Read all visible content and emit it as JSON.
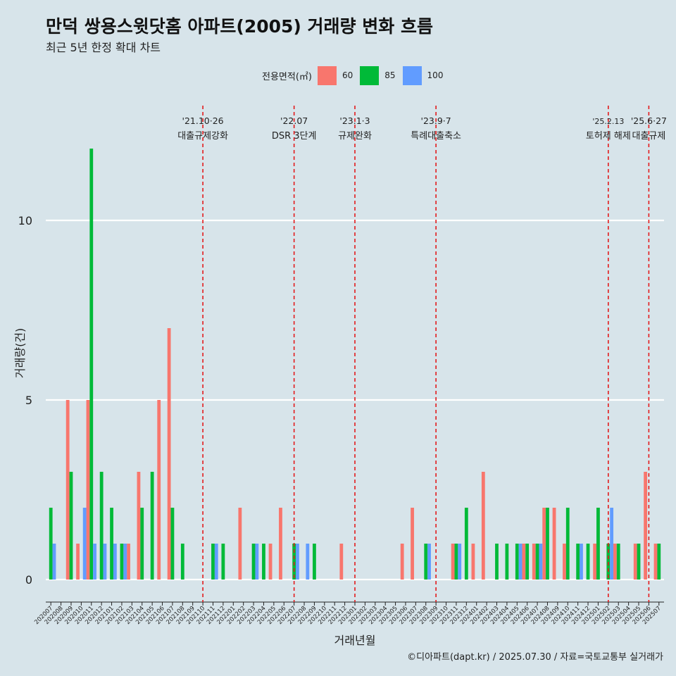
{
  "title": "만덕 쌍용스윗닷홈 아파트(2005) 거래량 변화 흐름",
  "subtitle": "최근 5년 한정 확대 차트",
  "legend": {
    "title": "전용면적(㎡)",
    "items": [
      {
        "label": "60",
        "color": "#f8766d"
      },
      {
        "label": "85",
        "color": "#00ba38"
      },
      {
        "label": "100",
        "color": "#619cff"
      }
    ]
  },
  "caption": "©디아파트(dapt.kr) / 2025.07.30 / 자료=국토교통부 실거래가",
  "chart_data": {
    "type": "bar",
    "xlabel": "거래년월",
    "ylabel": "거래량(건)",
    "ylim": [
      -0.6,
      13.2
    ],
    "yticks": [
      0,
      5,
      10
    ],
    "grid": "horizontal",
    "legend_position": "top",
    "categories": [
      "202007",
      "202008",
      "202009",
      "202010",
      "202011",
      "202012",
      "202101",
      "202102",
      "202103",
      "202104",
      "202105",
      "202106",
      "202107",
      "202108",
      "202109",
      "202110",
      "202111",
      "202112",
      "202201",
      "202202",
      "202203",
      "202204",
      "202205",
      "202206",
      "202207",
      "202208",
      "202209",
      "202210",
      "202211",
      "202212",
      "202301",
      "202302",
      "202303",
      "202304",
      "202305",
      "202306",
      "202307",
      "202308",
      "202309",
      "202310",
      "202311",
      "202312",
      "202401",
      "202402",
      "202403",
      "202404",
      "202405",
      "202406",
      "202407",
      "202408",
      "202409",
      "202410",
      "202411",
      "202412",
      "202501",
      "202502",
      "202503",
      "202504",
      "202505",
      "202506",
      "202507"
    ],
    "series": [
      {
        "name": "60",
        "color": "#f8766d",
        "values": [
          0,
          0,
          5,
          1,
          5,
          0,
          0,
          0,
          1,
          3,
          0,
          5,
          7,
          0,
          0,
          0,
          0,
          0,
          0,
          2,
          0,
          0,
          1,
          2,
          0,
          0,
          0,
          0,
          0,
          1,
          0,
          0,
          0,
          0,
          0,
          1,
          2,
          0,
          0,
          0,
          1,
          0,
          1,
          3,
          0,
          0,
          0,
          1,
          1,
          2,
          2,
          1,
          0,
          0,
          1,
          0,
          1,
          0,
          1,
          3,
          1
        ]
      },
      {
        "name": "85",
        "color": "#00ba38",
        "values": [
          2,
          0,
          3,
          0,
          12,
          3,
          2,
          1,
          0,
          2,
          3,
          0,
          2,
          1,
          0,
          0,
          1,
          1,
          0,
          0,
          1,
          1,
          0,
          0,
          1,
          0,
          1,
          0,
          0,
          0,
          0,
          0,
          0,
          0,
          0,
          0,
          0,
          1,
          0,
          0,
          1,
          2,
          0,
          0,
          1,
          1,
          1,
          1,
          1,
          2,
          0,
          2,
          1,
          1,
          2,
          1,
          1,
          0,
          1,
          0,
          1
        ]
      },
      {
        "name": "100",
        "color": "#619cff",
        "values": [
          1,
          0,
          0,
          2,
          1,
          1,
          1,
          1,
          0,
          0,
          0,
          0,
          0,
          0,
          0,
          0,
          1,
          0,
          0,
          0,
          1,
          0,
          0,
          0,
          1,
          1,
          0,
          0,
          0,
          0,
          0,
          0,
          0,
          0,
          0,
          0,
          0,
          1,
          0,
          0,
          1,
          0,
          0,
          0,
          0,
          0,
          1,
          0,
          1,
          0,
          0,
          0,
          1,
          0,
          0,
          2,
          0,
          0,
          0,
          0,
          0
        ]
      }
    ],
    "events": [
      {
        "date": "'21.10·26",
        "label": "대출규제강화",
        "category": "202110"
      },
      {
        "date": "'22.07",
        "label": "DSR 3단계",
        "category": "202207"
      },
      {
        "date": "'23.1·3",
        "label": "규제완화",
        "category": "202301"
      },
      {
        "date": "'23.9·7",
        "label": "특례대출축소",
        "category": "202309"
      },
      {
        "date": "'25.2.13",
        "label": "토허제 해제",
        "category": "202502"
      },
      {
        "date": "'25.6·27",
        "label": "대출규제",
        "category": "202506"
      }
    ]
  }
}
